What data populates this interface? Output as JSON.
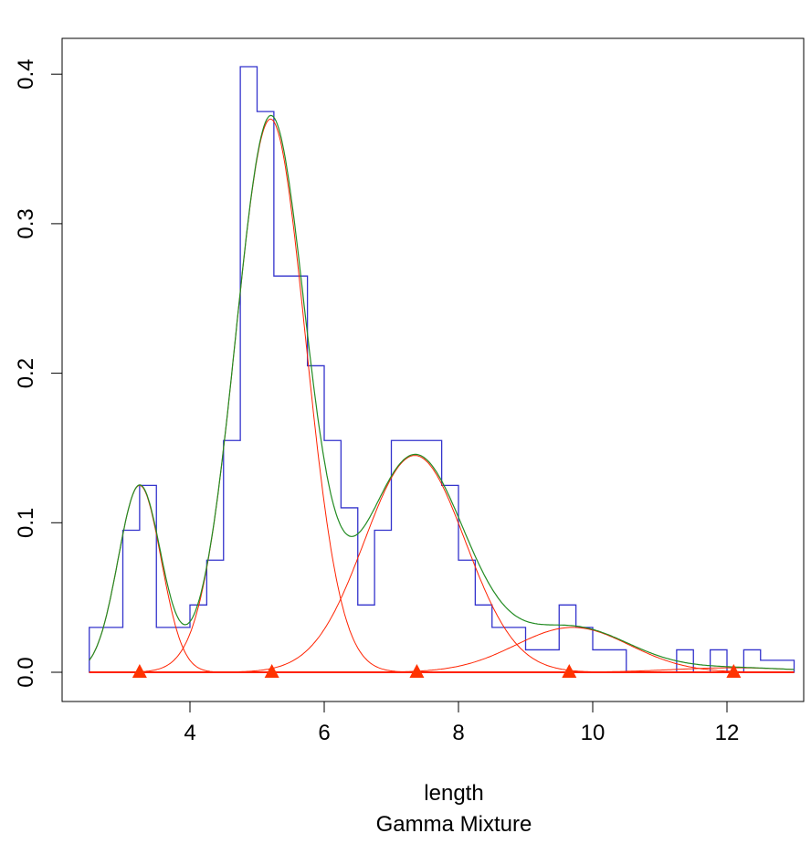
{
  "chart_data": {
    "type": "line",
    "title": "Gamma Mixture",
    "xlabel": "length",
    "ylabel": "",
    "xlim": [
      2.5,
      13
    ],
    "ylim": [
      -0.02,
      0.44
    ],
    "x_ticks": [
      "4",
      "6",
      "8",
      "10",
      "12"
    ],
    "y_ticks": [
      "0.0",
      "0.1",
      "0.2",
      "0.3",
      "0.4"
    ],
    "grid": false,
    "legend": "none",
    "histogram": {
      "color": "#3333cc",
      "bin_width": 0.25,
      "bins": [
        {
          "start": 2.5,
          "value": 0.03
        },
        {
          "start": 2.75,
          "value": 0.03
        },
        {
          "start": 3.0,
          "value": 0.095
        },
        {
          "start": 3.25,
          "value": 0.125
        },
        {
          "start": 3.5,
          "value": 0.03
        },
        {
          "start": 3.75,
          "value": 0.03
        },
        {
          "start": 4.0,
          "value": 0.045
        },
        {
          "start": 4.25,
          "value": 0.075
        },
        {
          "start": 4.5,
          "value": 0.155
        },
        {
          "start": 4.75,
          "value": 0.405
        },
        {
          "start": 5.0,
          "value": 0.375
        },
        {
          "start": 5.25,
          "value": 0.265
        },
        {
          "start": 5.5,
          "value": 0.265
        },
        {
          "start": 5.75,
          "value": 0.205
        },
        {
          "start": 6.0,
          "value": 0.155
        },
        {
          "start": 6.25,
          "value": 0.11
        },
        {
          "start": 6.5,
          "value": 0.045
        },
        {
          "start": 6.75,
          "value": 0.095
        },
        {
          "start": 7.0,
          "value": 0.155
        },
        {
          "start": 7.25,
          "value": 0.155
        },
        {
          "start": 7.5,
          "value": 0.155
        },
        {
          "start": 7.75,
          "value": 0.125
        },
        {
          "start": 8.0,
          "value": 0.075
        },
        {
          "start": 8.25,
          "value": 0.045
        },
        {
          "start": 8.5,
          "value": 0.03
        },
        {
          "start": 8.75,
          "value": 0.03
        },
        {
          "start": 9.0,
          "value": 0.015
        },
        {
          "start": 9.25,
          "value": 0.015
        },
        {
          "start": 9.5,
          "value": 0.045
        },
        {
          "start": 9.75,
          "value": 0.03
        },
        {
          "start": 10.0,
          "value": 0.015
        },
        {
          "start": 10.25,
          "value": 0.015
        },
        {
          "start": 10.5,
          "value": 0.0
        },
        {
          "start": 10.75,
          "value": 0.0
        },
        {
          "start": 11.0,
          "value": 0.0
        },
        {
          "start": 11.25,
          "value": 0.015
        },
        {
          "start": 11.5,
          "value": 0.0
        },
        {
          "start": 11.75,
          "value": 0.015
        },
        {
          "start": 12.0,
          "value": 0.0
        },
        {
          "start": 12.25,
          "value": 0.015
        },
        {
          "start": 12.5,
          "value": 0.008
        },
        {
          "start": 12.75,
          "value": 0.008
        }
      ]
    },
    "components": {
      "color": "#ff2200",
      "items": [
        {
          "mean": 3.25,
          "sd": 0.32,
          "peak": 0.125
        },
        {
          "mean": 5.2,
          "sd": 0.52,
          "peak": 0.37
        },
        {
          "mean": 7.35,
          "sd": 0.75,
          "peak": 0.145
        },
        {
          "mean": 9.7,
          "sd": 0.85,
          "peak": 0.03
        },
        {
          "mean": 12.1,
          "sd": 0.9,
          "peak": 0.003
        }
      ]
    },
    "mixture": {
      "color": "#228b22"
    },
    "markers": {
      "color": "#ff3300",
      "x": [
        3.25,
        5.22,
        7.38,
        9.65,
        12.1
      ],
      "y": 0.0
    }
  }
}
